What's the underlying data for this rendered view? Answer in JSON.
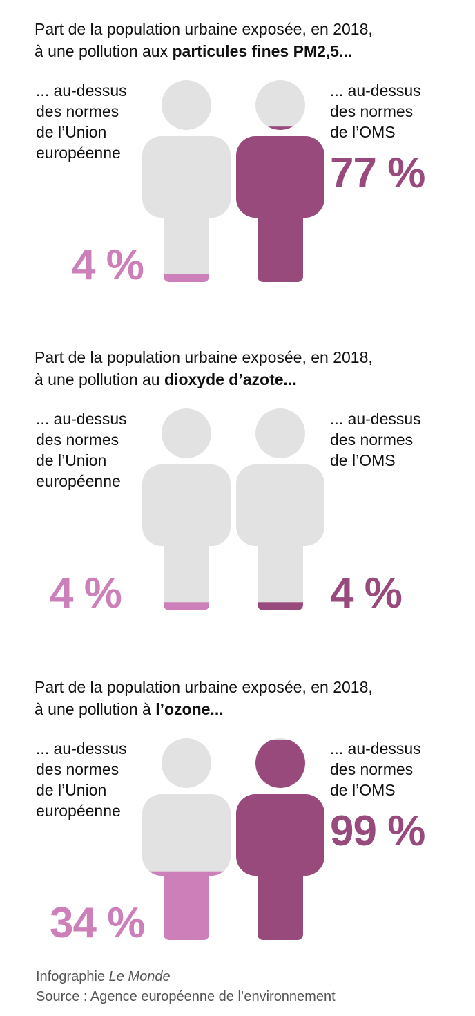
{
  "colors": {
    "empty": "#e2e2e2",
    "eu": "#cc7fb8",
    "oms": "#984a7d",
    "text": "#111111",
    "footer": "#555555"
  },
  "chart_data": [
    {
      "type": "pictogram",
      "title_prefix": "Part de la population urbaine exposée, en 2018, à une pollution aux",
      "title_highlight": "particules fines PM2,5...",
      "label_left": "... au-dessus\ndes normes\nde l’Union\neuropéenne",
      "label_right": "... au-dessus\ndes normes\nde l’OMS",
      "categories": [
        "Union européenne",
        "OMS"
      ],
      "values": [
        4,
        77
      ],
      "value_labels": [
        "4 %",
        "77 %"
      ],
      "unit": "%"
    },
    {
      "type": "pictogram",
      "title_prefix": "Part de la population urbaine exposée, en 2018, à une pollution au",
      "title_highlight": "dioxyde d’azote...",
      "label_left": "... au-dessus\ndes normes\nde l’Union\neuropéenne",
      "label_right": "... au-dessus\ndes normes\nde l’OMS",
      "categories": [
        "Union européenne",
        "OMS"
      ],
      "values": [
        4,
        4
      ],
      "value_labels": [
        "4 %",
        "4 %"
      ],
      "unit": "%"
    },
    {
      "type": "pictogram",
      "title_prefix": "Part de la population urbaine exposée, en 2018, à une pollution à",
      "title_highlight": "l’ozone...",
      "label_left": "... au-dessus\ndes normes\nde l’Union\neuropéenne",
      "label_right": "... au-dessus\ndes normes\nde l’OMS",
      "categories": [
        "Union européenne",
        "OMS"
      ],
      "values": [
        34,
        99
      ],
      "value_labels": [
        "34 %",
        "99 %"
      ],
      "unit": "%"
    }
  ],
  "footer": {
    "credit_prefix": "Infographie",
    "credit_name": "Le Monde",
    "source": "Source : Agence européenne de l’environnement"
  }
}
